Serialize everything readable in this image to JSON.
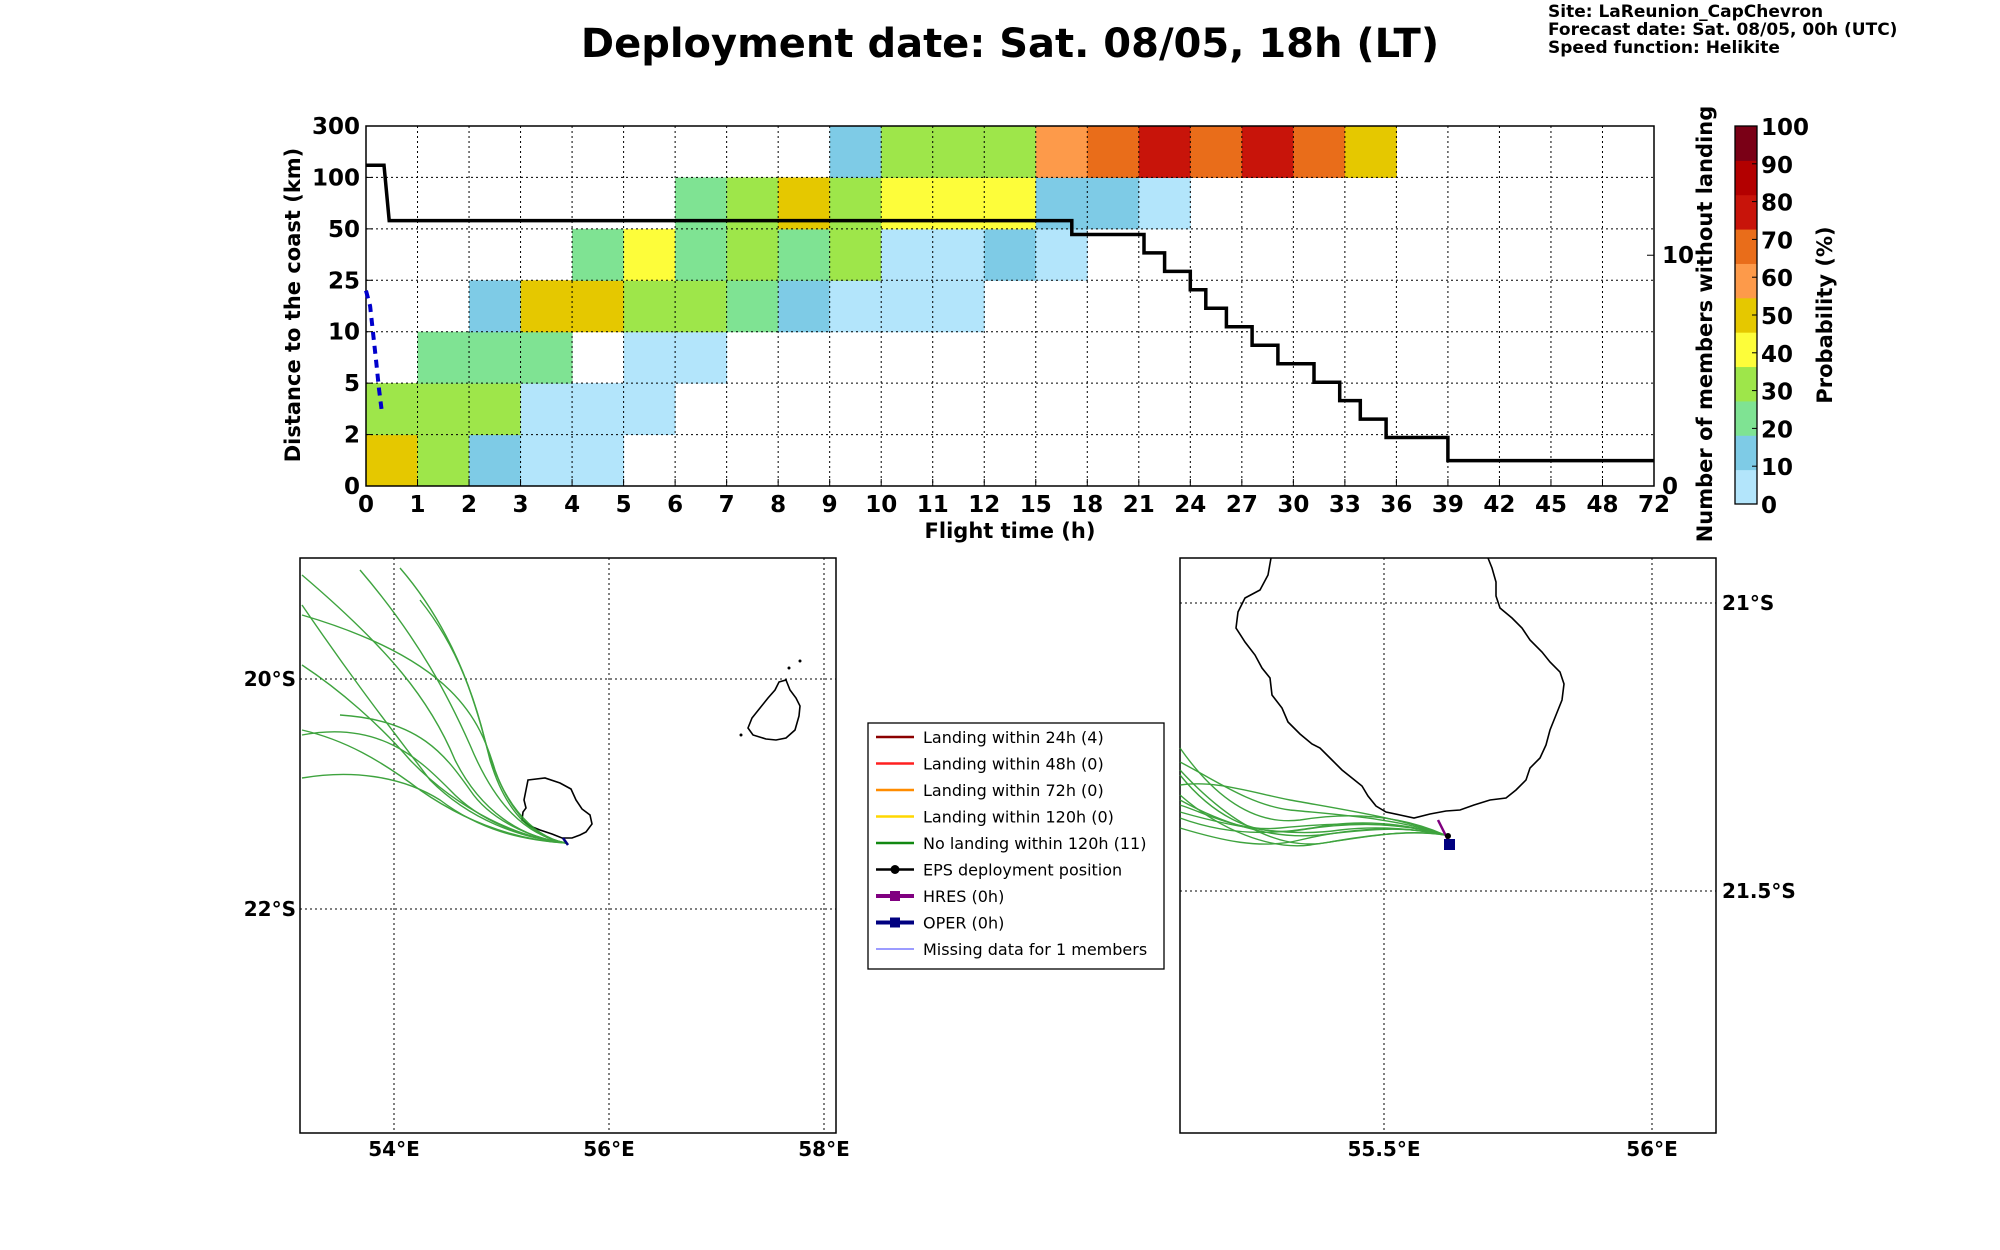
{
  "header": {
    "title": "Deployment date: Sat. 08/05, 18h (LT)",
    "site": "Site: LaReunion_CapChevron",
    "forecast": "Forecast date: Sat. 08/05, 00h (UTC)",
    "speed": "Speed function: Helikite"
  },
  "chart_data": [
    {
      "type": "heatmap",
      "xlabel": "Flight time (h)",
      "ylabel": "Distance to the coast (km)",
      "y2label": "Number of members without landing",
      "colorbar_label": "Probability (%)",
      "x_ticks": [
        "0",
        "1",
        "2",
        "3",
        "4",
        "5",
        "6",
        "7",
        "8",
        "9",
        "10",
        "11",
        "12",
        "15",
        "18",
        "21",
        "24",
        "27",
        "30",
        "33",
        "36",
        "39",
        "42",
        "45",
        "48",
        "72"
      ],
      "y_ticks": [
        "0",
        "2",
        "5",
        "10",
        "25",
        "50",
        "100",
        "300"
      ],
      "y2_ticks": [
        "0",
        "10"
      ],
      "y2lim": [
        0,
        15.6
      ],
      "colorbar_ticks": [
        "0",
        "10",
        "20",
        "30",
        "40",
        "50",
        "60",
        "70",
        "80",
        "90",
        "100"
      ],
      "colorbar_colors": [
        "#b3e5fb",
        "#7ecbe6",
        "#7fe393",
        "#9ee64a",
        "#fdfd3a",
        "#e5c800",
        "#fd9a4a",
        "#e96d1a",
        "#c8140a",
        "#b30000",
        "#7a0016"
      ],
      "cells": [
        {
          "x": 0,
          "y": 0,
          "p": 50
        },
        {
          "x": 1,
          "y": 0,
          "p": 30
        },
        {
          "x": 2,
          "y": 0,
          "p": 10
        },
        {
          "x": 3,
          "y": 0,
          "p": 0
        },
        {
          "x": 4,
          "y": 0,
          "p": 0
        },
        {
          "x": 0,
          "y": 1,
          "p": 30
        },
        {
          "x": 1,
          "y": 1,
          "p": 30
        },
        {
          "x": 2,
          "y": 1,
          "p": 30
        },
        {
          "x": 3,
          "y": 1,
          "p": 0
        },
        {
          "x": 4,
          "y": 1,
          "p": 0
        },
        {
          "x": 5,
          "y": 1,
          "p": 0
        },
        {
          "x": 1,
          "y": 2,
          "p": 20
        },
        {
          "x": 2,
          "y": 2,
          "p": 20
        },
        {
          "x": 3,
          "y": 2,
          "p": 20
        },
        {
          "x": 5,
          "y": 2,
          "p": 0
        },
        {
          "x": 6,
          "y": 2,
          "p": 0
        },
        {
          "x": 2,
          "y": 3,
          "p": 10
        },
        {
          "x": 3,
          "y": 3,
          "p": 50
        },
        {
          "x": 4,
          "y": 3,
          "p": 50
        },
        {
          "x": 5,
          "y": 3,
          "p": 30
        },
        {
          "x": 6,
          "y": 3,
          "p": 30
        },
        {
          "x": 7,
          "y": 3,
          "p": 20
        },
        {
          "x": 8,
          "y": 3,
          "p": 10
        },
        {
          "x": 9,
          "y": 3,
          "p": 0
        },
        {
          "x": 10,
          "y": 3,
          "p": 0
        },
        {
          "x": 11,
          "y": 3,
          "p": 0
        },
        {
          "x": 4,
          "y": 4,
          "p": 20
        },
        {
          "x": 5,
          "y": 4,
          "p": 40
        },
        {
          "x": 6,
          "y": 4,
          "p": 20
        },
        {
          "x": 7,
          "y": 4,
          "p": 30
        },
        {
          "x": 8,
          "y": 4,
          "p": 20
        },
        {
          "x": 9,
          "y": 4,
          "p": 30
        },
        {
          "x": 10,
          "y": 4,
          "p": 0
        },
        {
          "x": 11,
          "y": 4,
          "p": 0
        },
        {
          "x": 12,
          "y": 4,
          "p": 10
        },
        {
          "x": 13,
          "y": 4,
          "p": 0
        },
        {
          "x": 6,
          "y": 5,
          "p": 20
        },
        {
          "x": 7,
          "y": 5,
          "p": 30
        },
        {
          "x": 8,
          "y": 5,
          "p": 50
        },
        {
          "x": 9,
          "y": 5,
          "p": 30
        },
        {
          "x": 10,
          "y": 5,
          "p": 40
        },
        {
          "x": 11,
          "y": 5,
          "p": 40
        },
        {
          "x": 12,
          "y": 5,
          "p": 40
        },
        {
          "x": 13,
          "y": 5,
          "p": 10
        },
        {
          "x": 14,
          "y": 5,
          "p": 10
        },
        {
          "x": 15,
          "y": 5,
          "p": 0
        },
        {
          "x": 9,
          "y": 6,
          "p": 10
        },
        {
          "x": 10,
          "y": 6,
          "p": 30
        },
        {
          "x": 11,
          "y": 6,
          "p": 30
        },
        {
          "x": 12,
          "y": 6,
          "p": 30
        },
        {
          "x": 13,
          "y": 6,
          "p": 60
        },
        {
          "x": 14,
          "y": 6,
          "p": 70
        },
        {
          "x": 15,
          "y": 6,
          "p": 80
        },
        {
          "x": 16,
          "y": 6,
          "p": 70
        },
        {
          "x": 17,
          "y": 6,
          "p": 80
        },
        {
          "x": 18,
          "y": 6,
          "p": 70
        },
        {
          "x": 19,
          "y": 6,
          "p": 50
        }
      ],
      "members_step": [
        [
          0,
          13.9
        ],
        [
          0.35,
          13.9
        ],
        [
          0.45,
          11.5
        ],
        [
          13.7,
          11.5
        ],
        [
          13.7,
          10.9
        ],
        [
          15.1,
          10.9
        ],
        [
          15.1,
          10.1
        ],
        [
          15.5,
          10.1
        ],
        [
          15.5,
          9.3
        ],
        [
          16.0,
          9.3
        ],
        [
          16.0,
          8.5
        ],
        [
          16.3,
          8.5
        ],
        [
          16.3,
          7.7
        ],
        [
          16.7,
          7.7
        ],
        [
          16.7,
          6.9
        ],
        [
          17.2,
          6.9
        ],
        [
          17.2,
          6.1
        ],
        [
          17.7,
          6.1
        ],
        [
          17.7,
          5.3
        ],
        [
          18.4,
          5.3
        ],
        [
          18.4,
          4.5
        ],
        [
          18.9,
          4.5
        ],
        [
          18.9,
          3.7
        ],
        [
          19.3,
          3.7
        ],
        [
          19.3,
          2.9
        ],
        [
          19.8,
          2.9
        ],
        [
          19.8,
          2.1
        ],
        [
          21,
          2.1
        ],
        [
          21,
          1.1
        ],
        [
          25,
          1.1
        ]
      ],
      "oper_line": [
        [
          0,
          3.8
        ],
        [
          0.08,
          3.5
        ],
        [
          0.2,
          2.4
        ],
        [
          0.25,
          1.9
        ],
        [
          0.3,
          1.5
        ]
      ]
    },
    {
      "type": "map",
      "name": "regional",
      "lon_ticks": [
        "54°E",
        "56°E",
        "58°E"
      ],
      "lat_ticks": [
        "20°S",
        "22°S"
      ]
    },
    {
      "type": "map",
      "name": "zoom",
      "lon_ticks": [
        "55.5°E",
        "56°E"
      ],
      "lat_ticks": [
        "21°S",
        "21.5°S"
      ]
    }
  ],
  "legend": [
    {
      "label": "Landing within 24h (4)",
      "color": "#8b0000",
      "marker": "none"
    },
    {
      "label": "Landing within 48h (0)",
      "color": "#ff2020",
      "marker": "none"
    },
    {
      "label": "Landing within 72h (0)",
      "color": "#ff8c00",
      "marker": "none"
    },
    {
      "label": "Landing within 120h (0)",
      "color": "#ffd700",
      "marker": "none"
    },
    {
      "label": "No landing within 120h (11)",
      "color": "#118811",
      "marker": "none"
    },
    {
      "label": "EPS deployment position",
      "color": "#000000",
      "marker": "circle"
    },
    {
      "label": "HRES (0h)",
      "color": "#800080",
      "marker": "square"
    },
    {
      "label": "OPER (0h)",
      "color": "#000080",
      "marker": "square"
    },
    {
      "label": "Missing data for 1 members",
      "color": "#6060ff",
      "marker": "thin"
    }
  ]
}
